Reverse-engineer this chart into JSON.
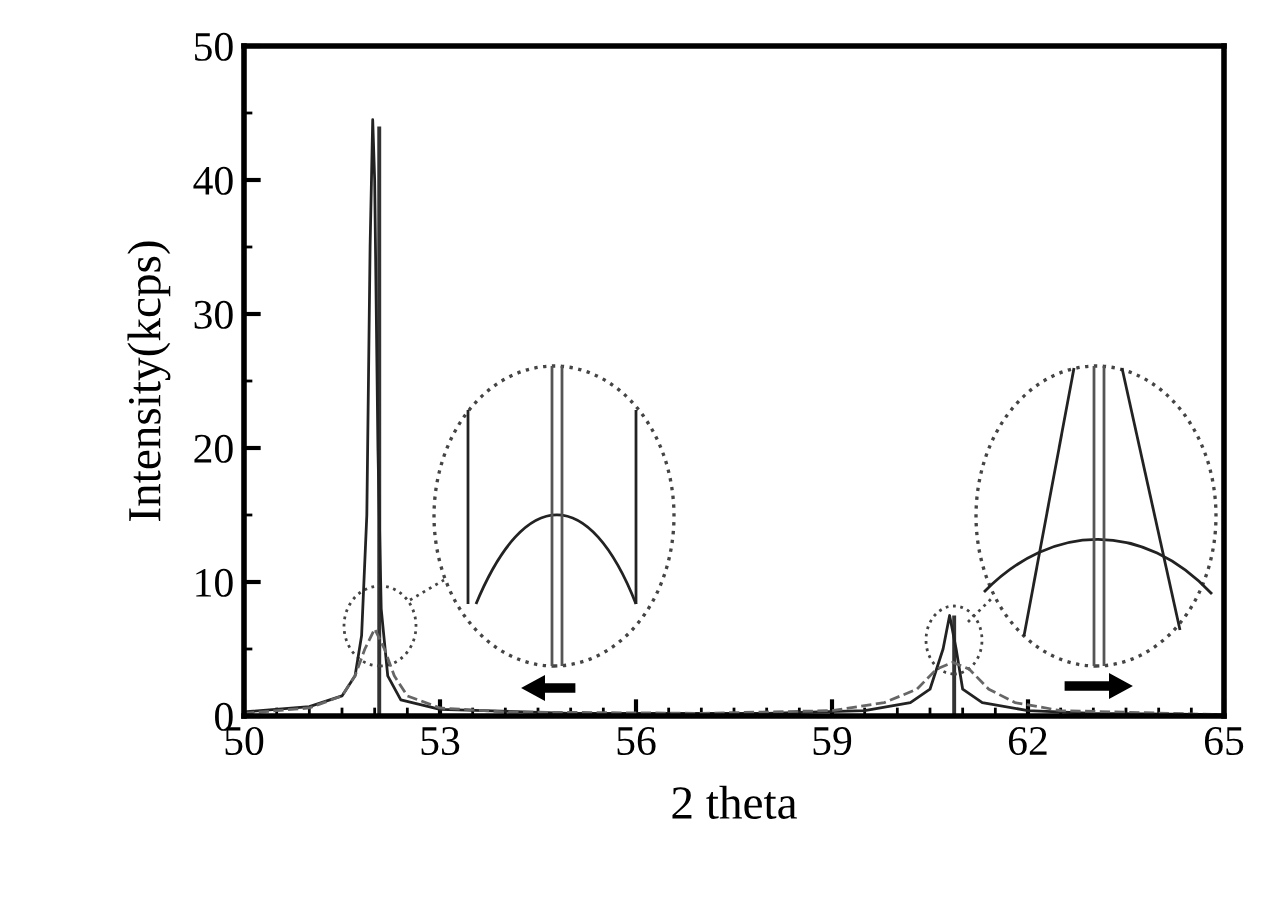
{
  "chart_data": {
    "type": "line",
    "xlabel": "2 theta",
    "ylabel": "Intensity(kcps)",
    "xlim": [
      50,
      65
    ],
    "xticks": [
      50,
      53,
      56,
      59,
      62,
      65
    ],
    "ylim": [
      0,
      50
    ],
    "yticks": [
      0,
      10,
      20,
      30,
      40,
      50
    ],
    "grid": false,
    "legend": false,
    "series": [
      {
        "line_style": "solid",
        "color": "#222222",
        "x": [
          50,
          51,
          51.5,
          51.7,
          51.8,
          51.88,
          51.93,
          51.97,
          52.0,
          52.05,
          52.1,
          52.2,
          52.4,
          53,
          55,
          58,
          59.5,
          60.2,
          60.5,
          60.7,
          60.8,
          60.9,
          61.0,
          61.3,
          62,
          63,
          65
        ],
        "values": [
          0.3,
          0.7,
          1.5,
          3,
          6,
          15,
          35,
          44.5,
          40,
          20,
          8,
          3,
          1.2,
          0.5,
          0.2,
          0.2,
          0.4,
          1,
          2,
          5,
          7.5,
          5,
          2,
          1,
          0.4,
          0.2,
          0.1
        ]
      },
      {
        "line_style": "dashed",
        "color": "#666666",
        "x": [
          50,
          51,
          51.5,
          51.7,
          51.85,
          52.0,
          52.15,
          52.3,
          52.5,
          53,
          54,
          57,
          59,
          59.8,
          60.3,
          60.6,
          60.85,
          61.1,
          61.4,
          61.8,
          62.5,
          65
        ],
        "values": [
          0.2,
          0.6,
          1.5,
          3,
          5,
          6.5,
          5,
          3,
          1.5,
          0.6,
          0.3,
          0.2,
          0.4,
          1,
          2,
          3.5,
          4,
          3.5,
          2,
          1,
          0.4,
          0.1
        ]
      },
      {
        "type": "bar",
        "color": "#333333",
        "x": [
          52.07,
          60.87
        ],
        "values": [
          44,
          7.5
        ]
      }
    ]
  }
}
